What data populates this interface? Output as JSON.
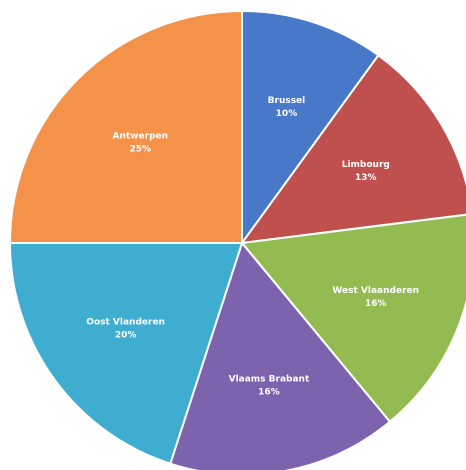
{
  "chart_data": {
    "type": "pie",
    "slices": [
      {
        "label": "Brussel",
        "percent_label": "10%",
        "value": 10,
        "color": "#4878c8"
      },
      {
        "label": "Limbourg",
        "percent_label": "13%",
        "value": 13,
        "color": "#c0504d"
      },
      {
        "label": "West Vlaanderen",
        "percent_label": "16%",
        "value": 16,
        "color": "#93bb52"
      },
      {
        "label": "Vlaams Brabant",
        "percent_label": "16%",
        "value": 16,
        "color": "#7d62ad"
      },
      {
        "label": "Oost Vlanderen",
        "percent_label": "20%",
        "value": 20,
        "color": "#3eadcf"
      },
      {
        "label": "Antwerpen",
        "percent_label": "25%",
        "value": 25,
        "color": "#f5924a"
      }
    ],
    "start_angle_deg": 0,
    "direction": "clockwise",
    "legend": "none",
    "data_labels": "inside"
  }
}
